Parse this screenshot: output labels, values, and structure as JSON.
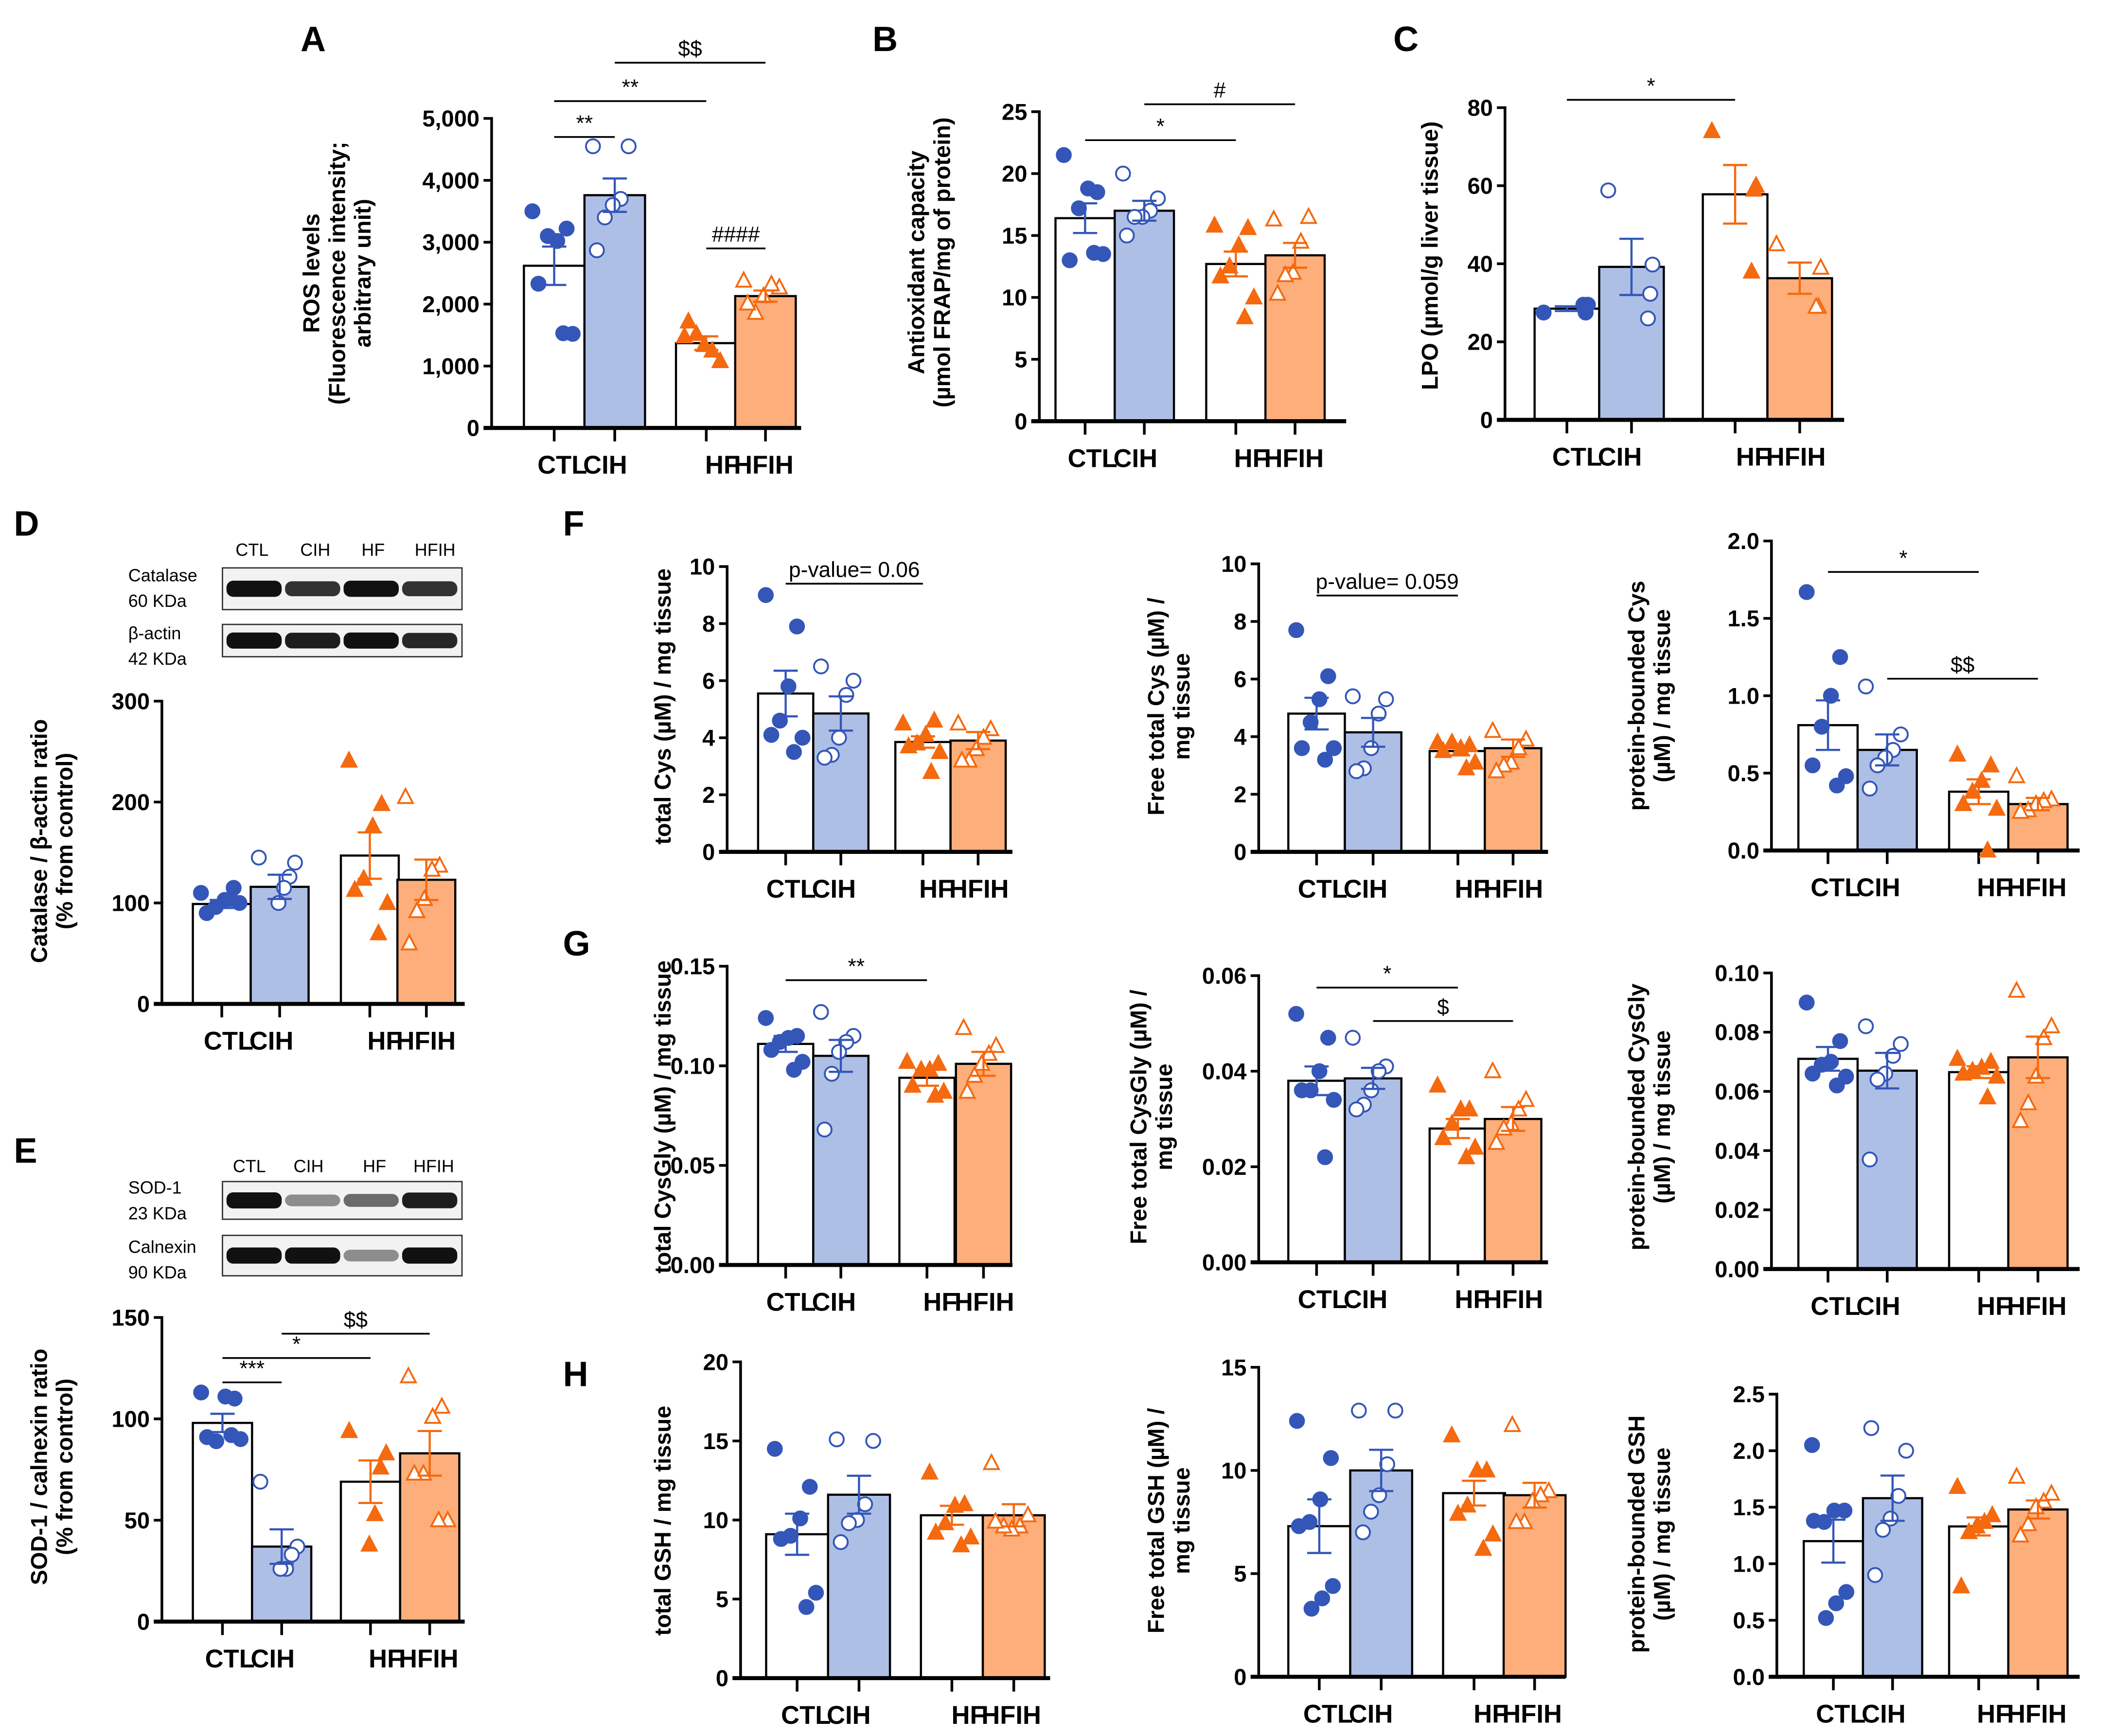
{
  "panel_letters": [
    "A",
    "B",
    "C",
    "D",
    "E",
    "F",
    "G",
    "H"
  ],
  "colors": {
    "control_marker": "#3456b8",
    "control_fill": "#aebfe6",
    "hf_marker": "#f5690f",
    "hf_fill": "#fdae7a",
    "white_fill": "#ffffff"
  },
  "blots": [
    {
      "lanes": [
        "CTL",
        "CIH",
        "HF",
        "HFIH"
      ],
      "rows": [
        {
          "name": "Catalase",
          "size": "60 KDa"
        },
        {
          "name": "β-actin",
          "size": "42 KDa"
        }
      ]
    },
    {
      "lanes": [
        "CTL",
        "CIH",
        "HF",
        "HFIH"
      ],
      "rows": [
        {
          "name": "SOD-1",
          "size": "23 KDa"
        },
        {
          "name": "Calnexin",
          "size": "90 KDa"
        }
      ]
    }
  ],
  "chart_data": [
    {
      "id": "A",
      "type": "bar",
      "categories": [
        "CTL",
        "CIH",
        "HF",
        "HFIH"
      ],
      "ylabel": [
        "ROS levels",
        "(Fluorescence intensity;",
        "arbitrary unit)"
      ],
      "ylim": [
        0,
        5000
      ],
      "yticks": [
        "0",
        "1,000",
        "2,000",
        "3,000",
        "4,000",
        "5,000"
      ],
      "means": [
        2620,
        3760,
        1370,
        2130
      ],
      "sem": [
        310,
        270,
        110,
        90
      ],
      "points": [
        [
          3500,
          3220,
          3020,
          3100,
          2330,
          1520,
          1530
        ],
        [
          4550,
          4550,
          3700,
          3600,
          3400,
          2870
        ],
        [
          1480,
          1080,
          1250,
          1340,
          1520,
          1720
        ],
        [
          2380,
          2270,
          2320,
          2130,
          1860,
          2010
        ]
      ],
      "significance": [
        {
          "from": 0,
          "to": 1,
          "y": 4700,
          "label": "**"
        },
        {
          "from": 0,
          "to": 2,
          "y": 5280,
          "label": "**"
        },
        {
          "from": 1,
          "to": 3,
          "y": 5900,
          "label": "$$"
        },
        {
          "from": 2,
          "to": 3,
          "y": 2900,
          "label": "####"
        }
      ]
    },
    {
      "id": "B",
      "type": "bar",
      "categories": [
        "CTL",
        "CIH",
        "HF",
        "HFIH"
      ],
      "ylabel": [
        "Antioxidant capacity",
        "(µmol FRAP/mg of protein)"
      ],
      "ylim": [
        0,
        25
      ],
      "yticks": [
        "0",
        "5",
        "10",
        "15",
        "20",
        "25"
      ],
      "means": [
        16.4,
        17.0,
        12.7,
        13.4
      ],
      "sem": [
        1.2,
        0.8,
        1.0,
        1.0
      ],
      "points": [
        [
          21.5,
          18.5,
          18.8,
          17.2,
          13.0,
          13.5,
          13.6
        ],
        [
          20,
          18,
          17,
          16.5,
          16.5,
          15
        ],
        [
          15.8,
          15.6,
          14.2,
          12.5,
          11.7,
          10.0,
          8.4
        ],
        [
          16.3,
          16.5,
          14.5,
          12.0,
          11.8,
          10.3
        ]
      ],
      "significance": [
        {
          "from": 0,
          "to": 2,
          "y": 22.7,
          "label": "*"
        },
        {
          "from": 1,
          "to": 3,
          "y": 25.6,
          "label": "#"
        }
      ]
    },
    {
      "id": "C",
      "type": "bar",
      "categories": [
        "CTL",
        "CIH",
        "HF",
        "HFIH"
      ],
      "ylabel": [
        "LPO (µmol/g liver tissue)"
      ],
      "ylim": [
        0,
        80
      ],
      "yticks": [
        "0",
        "20",
        "40",
        "60",
        "80"
      ],
      "means": [
        28.5,
        39.2,
        57.8,
        36.3
      ],
      "sem": [
        0.6,
        7.2,
        7.5,
        4.0
      ],
      "points": [
        [
          27.5,
          29.5,
          27.5,
          29.5
        ],
        [
          58.8,
          39.8,
          32.3,
          26
        ],
        [
          74,
          60,
          59,
          38
        ],
        [
          45,
          39,
          29,
          29
        ]
      ],
      "significance": [
        {
          "from": 0,
          "to": 2,
          "y": 82,
          "label": "*"
        }
      ]
    },
    {
      "id": "D",
      "type": "bar",
      "categories": [
        "CTL",
        "CIH",
        "HF",
        "HFIH"
      ],
      "ylabel": [
        "Catalase / β-actin ratio",
        "(% from control)"
      ],
      "ylim": [
        0,
        300
      ],
      "yticks": [
        "0",
        "100",
        "200",
        "300"
      ],
      "means": [
        99,
        116,
        147,
        123
      ],
      "sem": [
        4,
        12,
        23,
        20
      ],
      "points": [
        [
          110,
          115,
          103,
          96,
          90,
          100,
          104
        ],
        [
          145,
          140,
          126,
          115,
          100
        ],
        [
          241,
          198,
          176,
          124,
          113,
          100,
          70
        ],
        [
          205,
          137,
          133,
          104,
          92,
          60
        ]
      ],
      "significance": []
    },
    {
      "id": "E",
      "type": "bar",
      "categories": [
        "CTL",
        "CIH",
        "HF",
        "HFIH"
      ],
      "ylabel": [
        "SOD-1 / calnexin ratio",
        "(% from control)"
      ],
      "ylim": [
        0,
        150
      ],
      "yticks": [
        "0",
        "50",
        "100",
        "150"
      ],
      "means": [
        98,
        37,
        69,
        83
      ],
      "sem": [
        4.5,
        8.5,
        10.5,
        11
      ],
      "points": [
        [
          113,
          110,
          111,
          89,
          91,
          90,
          92
        ],
        [
          69,
          37,
          33,
          26,
          26
        ],
        [
          94,
          83,
          76,
          53,
          38
        ],
        [
          121,
          106,
          101,
          73,
          73,
          50,
          50
        ]
      ],
      "significance": [
        {
          "from": 0,
          "to": 1,
          "y": 118,
          "label": "***"
        },
        {
          "from": 0,
          "to": 2,
          "y": 130,
          "label": "*"
        },
        {
          "from": 1,
          "to": 3,
          "y": 142,
          "label": "$$"
        }
      ]
    },
    {
      "id": "F1",
      "type": "bar",
      "categories": [
        "CTL",
        "CIH",
        "HF",
        "HFIH"
      ],
      "ylabel": [
        "total Cys (µM) / mg tissue"
      ],
      "ylim": [
        0,
        10
      ],
      "yticks": [
        "0",
        "2",
        "4",
        "6",
        "8",
        "10"
      ],
      "means": [
        5.55,
        4.85,
        3.85,
        3.9
      ],
      "sem": [
        0.8,
        0.6,
        0.2,
        0.3
      ],
      "points": [
        [
          9,
          7.9,
          5.8,
          4.6,
          4.1,
          4.0,
          3.5
        ],
        [
          6.5,
          6.0,
          5.5,
          4.0,
          3.4,
          3.3
        ],
        [
          4.5,
          4.6,
          4.1,
          3.8,
          3.7,
          3.5,
          2.8
        ],
        [
          4.5,
          4.3,
          4.0,
          3.6,
          3.2,
          3.2
        ]
      ],
      "significance": [
        {
          "from": 0,
          "to": 2,
          "y": 9.4,
          "label": "p-value= 0.06"
        }
      ]
    },
    {
      "id": "F2",
      "type": "bar",
      "categories": [
        "CTL",
        "CIH",
        "HF",
        "HFIH"
      ],
      "ylabel": [
        "Free total Cys (µM) /",
        "mg tissue"
      ],
      "ylim": [
        0,
        10
      ],
      "yticks": [
        "0",
        "2",
        "4",
        "6",
        "8",
        "10"
      ],
      "means": [
        4.8,
        4.15,
        3.5,
        3.6
      ],
      "sem": [
        0.55,
        0.5,
        0.15,
        0.3
      ],
      "points": [
        [
          7.7,
          6.1,
          5.3,
          4.5,
          3.6,
          3.6,
          3.2
        ],
        [
          5.4,
          5.3,
          4.8,
          3.6,
          2.9,
          2.8
        ],
        [
          3.8,
          3.7,
          3.6,
          3.8,
          3.5,
          3.1,
          2.9
        ],
        [
          4.2,
          3.9,
          3.6,
          3.1,
          3.0,
          2.8
        ]
      ],
      "significance": [
        {
          "from": 0,
          "to": 2,
          "y": 8.9,
          "label": "p-value= 0.059"
        }
      ]
    },
    {
      "id": "F3",
      "type": "bar",
      "categories": [
        "CTL",
        "CIH",
        "HF",
        "HFIH"
      ],
      "ylabel": [
        "protein-bounded Cys",
        "(µM) / mg tissue"
      ],
      "ylim": [
        0,
        2.0
      ],
      "yticks": [
        "0.0",
        "0.5",
        "1.0",
        "1.5",
        "2.0"
      ],
      "means": [
        0.81,
        0.65,
        0.38,
        0.3
      ],
      "sem": [
        0.16,
        0.1,
        0.08,
        0.04
      ],
      "points": [
        [
          1.67,
          1.25,
          1.0,
          0.8,
          0.55,
          0.48,
          0.42
        ],
        [
          1.06,
          0.75,
          0.65,
          0.6,
          0.55,
          0.4
        ],
        [
          0.62,
          0.55,
          0.45,
          0.38,
          0.3,
          0.27,
          0.0
        ],
        [
          0.48,
          0.33,
          0.32,
          0.3,
          0.26,
          0.25
        ]
      ],
      "significance": [
        {
          "from": 0,
          "to": 2,
          "y": 1.8,
          "label": "*"
        },
        {
          "from": 1,
          "to": 3,
          "y": 1.11,
          "label": "$$"
        }
      ]
    },
    {
      "id": "G1",
      "type": "bar",
      "categories": [
        "CTL",
        "CIH",
        "HF",
        "HFIH"
      ],
      "ylabel": [
        "total CysGly (µM) / mg tissue"
      ],
      "ylim": [
        0,
        0.15
      ],
      "yticks": [
        "0.00",
        "0.05",
        "0.10",
        "0.15"
      ],
      "means": [
        0.111,
        0.105,
        0.094,
        0.101
      ],
      "sem": [
        0.004,
        0.008,
        0.004,
        0.006
      ],
      "points": [
        [
          0.124,
          0.115,
          0.114,
          0.112,
          0.108,
          0.102,
          0.098
        ],
        [
          0.127,
          0.115,
          0.112,
          0.107,
          0.096,
          0.068
        ],
        [
          0.102,
          0.101,
          0.098,
          0.098,
          0.09,
          0.087,
          0.085
        ],
        [
          0.119,
          0.11,
          0.106,
          0.101,
          0.095,
          0.087
        ]
      ],
      "significance": [
        {
          "from": 0,
          "to": 2,
          "y": 0.143,
          "label": "**"
        }
      ]
    },
    {
      "id": "G2",
      "type": "bar",
      "categories": [
        "CTL",
        "CIH",
        "HF",
        "HFIH"
      ],
      "ylabel": [
        "Free total CysGly (µM) /",
        "mg tissue"
      ],
      "ylim": [
        0,
        0.06
      ],
      "yticks": [
        "0.00",
        "0.02",
        "0.04",
        "0.06"
      ],
      "means": [
        0.038,
        0.0385,
        0.028,
        0.03
      ],
      "sem": [
        0.003,
        0.0022,
        0.002,
        0.0025
      ],
      "points": [
        [
          0.052,
          0.047,
          0.04,
          0.036,
          0.036,
          0.034,
          0.022
        ],
        [
          0.047,
          0.041,
          0.04,
          0.036,
          0.033,
          0.032
        ],
        [
          0.037,
          0.032,
          0.032,
          0.029,
          0.026,
          0.024,
          0.022
        ],
        [
          0.04,
          0.034,
          0.032,
          0.029,
          0.028,
          0.025
        ]
      ],
      "significance": [
        {
          "from": 0,
          "to": 2,
          "y": 0.0575,
          "label": "*"
        },
        {
          "from": 1,
          "to": 3,
          "y": 0.0505,
          "label": "$"
        }
      ]
    },
    {
      "id": "G3",
      "type": "bar",
      "categories": [
        "CTL",
        "CIH",
        "HF",
        "HFIH"
      ],
      "ylabel": [
        "protein-bounded CysGly",
        "(µM) / mg tissue"
      ],
      "ylim": [
        0,
        0.1
      ],
      "yticks": [
        "0.00",
        "0.02",
        "0.04",
        "0.06",
        "0.08",
        "0.10"
      ],
      "means": [
        0.071,
        0.067,
        0.0665,
        0.0715
      ],
      "sem": [
        0.004,
        0.006,
        0.002,
        0.007
      ],
      "points": [
        [
          0.09,
          0.077,
          0.07,
          0.069,
          0.066,
          0.065,
          0.062
        ],
        [
          0.082,
          0.076,
          0.072,
          0.066,
          0.064,
          0.037
        ],
        [
          0.071,
          0.07,
          0.068,
          0.067,
          0.066,
          0.065,
          0.058
        ],
        [
          0.094,
          0.082,
          0.078,
          0.065,
          0.056,
          0.05
        ]
      ],
      "significance": []
    },
    {
      "id": "H1",
      "type": "bar",
      "categories": [
        "CTL",
        "CIH",
        "HF",
        "HFIH"
      ],
      "ylabel": [
        "total GSH / mg tissue"
      ],
      "ylim": [
        0,
        20
      ],
      "yticks": [
        "0",
        "5",
        "10",
        "15",
        "20"
      ],
      "means": [
        9.1,
        11.6,
        10.3,
        10.3
      ],
      "sem": [
        1.3,
        1.2,
        0.6,
        0.7
      ],
      "points": [
        [
          14.5,
          12.1,
          10.1,
          9.0,
          8.8,
          5.4,
          4.5
        ],
        [
          15.1,
          15.0,
          11.0,
          10.0,
          9.8,
          8.6
        ],
        [
          13.0,
          11.0,
          10.9,
          9.8,
          9.2,
          8.9,
          8.4
        ],
        [
          13.6,
          10.3,
          9.6,
          9.4,
          9.6,
          9.9
        ]
      ],
      "significance": []
    },
    {
      "id": "H2",
      "type": "bar",
      "categories": [
        "CTL",
        "CIH",
        "HF",
        "HFIH"
      ],
      "ylabel": [
        "Free total GSH (µM) /",
        "mg tissue"
      ],
      "ylim": [
        0,
        15
      ],
      "yticks": [
        "0",
        "5",
        "10",
        "15"
      ],
      "means": [
        7.3,
        10.0,
        8.9,
        8.8
      ],
      "sem": [
        1.3,
        1.0,
        0.6,
        0.6
      ],
      "points": [
        [
          12.4,
          10.6,
          8.6,
          7.5,
          7.3,
          4.4,
          3.8,
          3.3
        ],
        [
          12.9,
          12.9,
          10.3,
          8.8,
          8.0,
          7.0
        ],
        [
          11.7,
          10.0,
          10.0,
          8.3,
          7.9,
          6.9,
          6.2
        ],
        [
          12.2,
          9.0,
          8.8,
          8.5,
          7.5,
          7.5
        ]
      ],
      "significance": []
    },
    {
      "id": "H3",
      "type": "bar",
      "categories": [
        "CTL",
        "CIH",
        "HF",
        "HFIH"
      ],
      "ylabel": [
        "protein-bounded GSH",
        "(µM) / mg tissue"
      ],
      "ylim": [
        0,
        2.5
      ],
      "yticks": [
        "0.0",
        "0.5",
        "1.0",
        "1.5",
        "2.0",
        "2.5"
      ],
      "means": [
        1.2,
        1.58,
        1.33,
        1.48
      ],
      "sem": [
        0.19,
        0.2,
        0.08,
        0.08
      ],
      "points": [
        [
          2.05,
          1.47,
          1.47,
          1.37,
          1.38,
          0.75,
          0.65,
          0.52
        ],
        [
          2.2,
          2.0,
          1.6,
          1.4,
          1.3,
          0.9
        ],
        [
          1.68,
          1.43,
          1.37,
          1.33,
          1.28,
          0.8
        ],
        [
          1.77,
          1.62,
          1.55,
          1.5,
          1.35,
          1.25
        ]
      ],
      "significance": []
    }
  ]
}
